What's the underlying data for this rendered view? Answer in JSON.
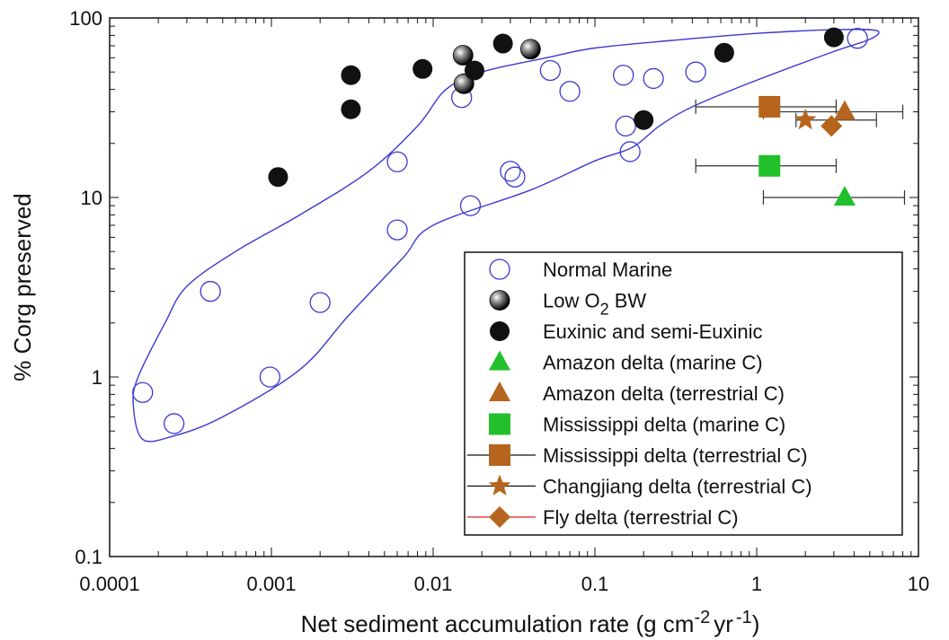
{
  "chart_data": {
    "type": "scatter",
    "xscale": "log",
    "yscale": "log",
    "xlim": [
      0.0001,
      10
    ],
    "ylim": [
      0.1,
      100
    ],
    "xlabel": "Net sediment accumulation rate (g cm-2 yr -1)",
    "xlabel_parts": {
      "main": "Net sediment accumulation rate (g cm",
      "sup1": "-2",
      "mid": "yr",
      "sup2": "-1",
      "end": ")"
    },
    "ylabel": "% Corg preserved",
    "xticks": [
      {
        "value": 0.0001,
        "label": "0.0001"
      },
      {
        "value": 0.001,
        "label": "0.001"
      },
      {
        "value": 0.01,
        "label": "0.01"
      },
      {
        "value": 0.1,
        "label": "0.1"
      },
      {
        "value": 1,
        "label": "1"
      },
      {
        "value": 10,
        "label": "10"
      }
    ],
    "yticks": [
      {
        "value": 0.1,
        "label": "0.1"
      },
      {
        "value": 1,
        "label": "1"
      },
      {
        "value": 10,
        "label": "10"
      },
      {
        "value": 100,
        "label": "100"
      }
    ],
    "grid": false,
    "legend_position": "bottom-right",
    "envelope": {
      "color": "#3a3acf",
      "points": [
        [
          0.00016,
          0.45
        ],
        [
          0.00014,
          0.7
        ],
        [
          0.00015,
          1.0
        ],
        [
          0.00022,
          2.0
        ],
        [
          0.0003,
          3.2
        ],
        [
          0.0006,
          5.0
        ],
        [
          0.0015,
          8.0
        ],
        [
          0.004,
          14
        ],
        [
          0.008,
          25
        ],
        [
          0.012,
          40
        ],
        [
          0.02,
          50
        ],
        [
          0.05,
          60
        ],
        [
          0.1,
          68
        ],
        [
          0.3,
          75
        ],
        [
          1,
          82
        ],
        [
          3,
          86
        ],
        [
          5.5,
          85
        ],
        [
          5,
          76
        ],
        [
          3,
          65
        ],
        [
          1,
          45
        ],
        [
          0.4,
          32
        ],
        [
          0.25,
          25
        ],
        [
          0.17,
          19
        ],
        [
          0.1,
          16
        ],
        [
          0.04,
          11
        ],
        [
          0.01,
          7
        ],
        [
          0.0065,
          4.6
        ],
        [
          0.003,
          2.2
        ],
        [
          0.0015,
          1.1
        ],
        [
          0.0005,
          0.6
        ],
        [
          0.00025,
          0.47
        ]
      ]
    },
    "series": [
      {
        "name": "Normal Marine",
        "marker": "circle-open",
        "color": "#3a3acf",
        "points": [
          [
            0.00016,
            0.82
          ],
          [
            0.00025,
            0.55
          ],
          [
            0.00042,
            3.0
          ],
          [
            0.00098,
            1.0
          ],
          [
            0.002,
            2.6
          ],
          [
            0.006,
            6.6
          ],
          [
            0.006,
            15.8
          ],
          [
            0.015,
            36
          ],
          [
            0.017,
            9
          ],
          [
            0.03,
            14
          ],
          [
            0.032,
            13
          ],
          [
            0.053,
            51
          ],
          [
            0.07,
            39
          ],
          [
            0.15,
            48
          ],
          [
            0.155,
            25
          ],
          [
            0.165,
            18
          ],
          [
            0.23,
            46
          ],
          [
            0.42,
            50
          ],
          [
            4.2,
            77
          ]
        ]
      },
      {
        "name": "Low O2 BW",
        "name_parts": {
          "main": "Low O",
          "sub": "2",
          "end": " BW"
        },
        "marker": "circle-shaded",
        "color": "#111111",
        "points": [
          [
            0.0153,
            62
          ],
          [
            0.0155,
            43
          ],
          [
            0.04,
            67
          ]
        ]
      },
      {
        "name": "Euxinic and semi-Euxinic",
        "marker": "circle-filled",
        "color": "#111111",
        "points": [
          [
            0.0011,
            13
          ],
          [
            0.0031,
            31
          ],
          [
            0.0031,
            48
          ],
          [
            0.0086,
            52
          ],
          [
            0.018,
            51
          ],
          [
            0.027,
            72
          ],
          [
            0.2,
            27
          ],
          [
            0.63,
            64
          ],
          [
            3.0,
            78
          ]
        ]
      },
      {
        "name": "Amazon delta (marine C)",
        "marker": "triangle",
        "color": "#22c02a",
        "points": [
          [
            3.5,
            10
          ]
        ],
        "xerr": [
          [
            1.1,
            8.2
          ]
        ]
      },
      {
        "name": "Amazon delta (terrestrial C)",
        "marker": "triangle",
        "color": "#b5651d",
        "points": [
          [
            3.5,
            30
          ]
        ],
        "xerr": [
          [
            1.1,
            8.0
          ]
        ]
      },
      {
        "name": "Mississippi delta (marine C)",
        "marker": "square",
        "color": "#22c02a",
        "points": [
          [
            1.2,
            15
          ]
        ],
        "xerr": [
          [
            0.42,
            3.1
          ]
        ]
      },
      {
        "name": "Mississippi delta (terrestrial C)",
        "marker": "square",
        "color": "#b5651d",
        "points": [
          [
            1.2,
            32
          ]
        ],
        "xerr": [
          [
            0.42,
            3.1
          ]
        ]
      },
      {
        "name": "Changjiang delta (terrestrial C)",
        "marker": "star",
        "color": "#b5651d",
        "points": [
          [
            2.0,
            27
          ]
        ],
        "xerr": [
          [
            1.75,
            5.5
          ]
        ]
      },
      {
        "name": "Fly delta (terrestrial C)",
        "marker": "diamond",
        "color": "#b5651d",
        "line_color": "#e02020",
        "points": [
          [
            2.9,
            25
          ]
        ]
      }
    ]
  }
}
